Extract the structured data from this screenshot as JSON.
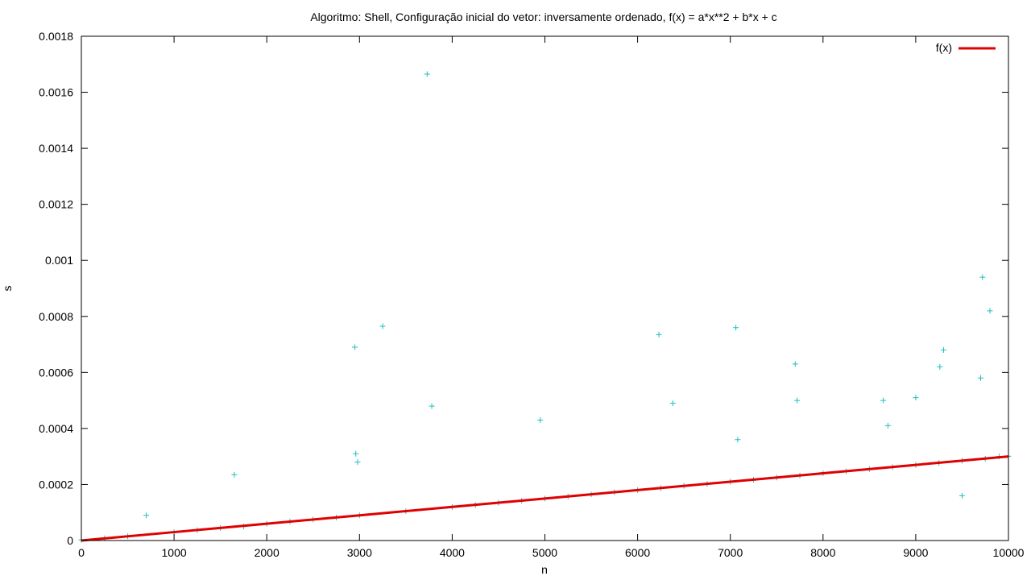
{
  "chart_data": {
    "type": "scatter",
    "title": "Algoritmo: Shell, Configuração inicial do vetor: inversamente ordenado, f(x) = a*x**2 + b*x + c",
    "xlabel": "n",
    "ylabel": "s",
    "xlim": [
      0,
      10000
    ],
    "ylim": [
      0,
      0.0018
    ],
    "x_ticks": [
      "0",
      "1000",
      "2000",
      "3000",
      "4000",
      "5000",
      "6000",
      "7000",
      "8000",
      "9000",
      "10000"
    ],
    "y_ticks": [
      "0",
      "0.0002",
      "0.0004",
      "0.0006",
      "0.0008",
      "0.001",
      "0.0012",
      "0.0014",
      "0.0016",
      "0.0018"
    ],
    "grid": false,
    "legend": {
      "position": "top-right",
      "entries": [
        "f(x)"
      ]
    },
    "colors": {
      "points": "#1fbfbf",
      "fit": "#e00000"
    },
    "series": [
      {
        "type": "scatter",
        "marker": "plus",
        "description": "measured times (dense band approx. y = 3e-8 * x)",
        "x": [
          0,
          250,
          500,
          700,
          1000,
          1250,
          1500,
          1650,
          1750,
          2000,
          2250,
          2500,
          2750,
          2950,
          2960,
          2980,
          3000,
          3250,
          3500,
          3730,
          3780,
          4000,
          4250,
          4500,
          4750,
          4950,
          5000,
          5250,
          5500,
          5750,
          6000,
          6230,
          6250,
          6380,
          6500,
          6750,
          7000,
          7060,
          7080,
          7250,
          7500,
          7700,
          7720,
          7750,
          8000,
          8250,
          8500,
          8650,
          8700,
          8750,
          9000,
          9000,
          9250,
          9260,
          9300,
          9500,
          9500,
          9700,
          9720,
          9750,
          9800,
          9900,
          10000
        ],
        "y": [
          2e-06,
          8e-06,
          1.5e-05,
          9e-05,
          3e-05,
          3.7e-05,
          4.5e-05,
          0.000235,
          5e-05,
          6e-05,
          6.8e-05,
          7.5e-05,
          8.2e-05,
          0.00069,
          0.00031,
          0.00028,
          9e-05,
          0.000765,
          0.000105,
          0.001665,
          0.00048,
          0.00012,
          0.000127,
          0.000135,
          0.000142,
          0.00043,
          0.00015,
          0.000157,
          0.000165,
          0.000172,
          0.00018,
          0.000735,
          0.000187,
          0.00049,
          0.000195,
          0.000202,
          0.00021,
          0.00076,
          0.00036,
          0.000217,
          0.000225,
          0.00063,
          0.0005,
          0.000232,
          0.00024,
          0.000247,
          0.000255,
          0.0005,
          0.00041,
          0.000262,
          0.00027,
          0.00051,
          0.000277,
          0.00062,
          0.00068,
          0.000285,
          0.00016,
          0.00058,
          0.00094,
          0.000292,
          0.00082,
          0.0003,
          0.000301
        ]
      },
      {
        "type": "line",
        "name": "f(x)",
        "description": "quadratic fit",
        "x": [
          0,
          1000,
          2000,
          3000,
          4000,
          5000,
          6000,
          7000,
          8000,
          9000,
          10000
        ],
        "y": [
          0.0,
          3e-05,
          6e-05,
          9e-05,
          0.00012,
          0.00015,
          0.00018,
          0.00021,
          0.00024,
          0.00027,
          0.0003
        ]
      }
    ]
  }
}
